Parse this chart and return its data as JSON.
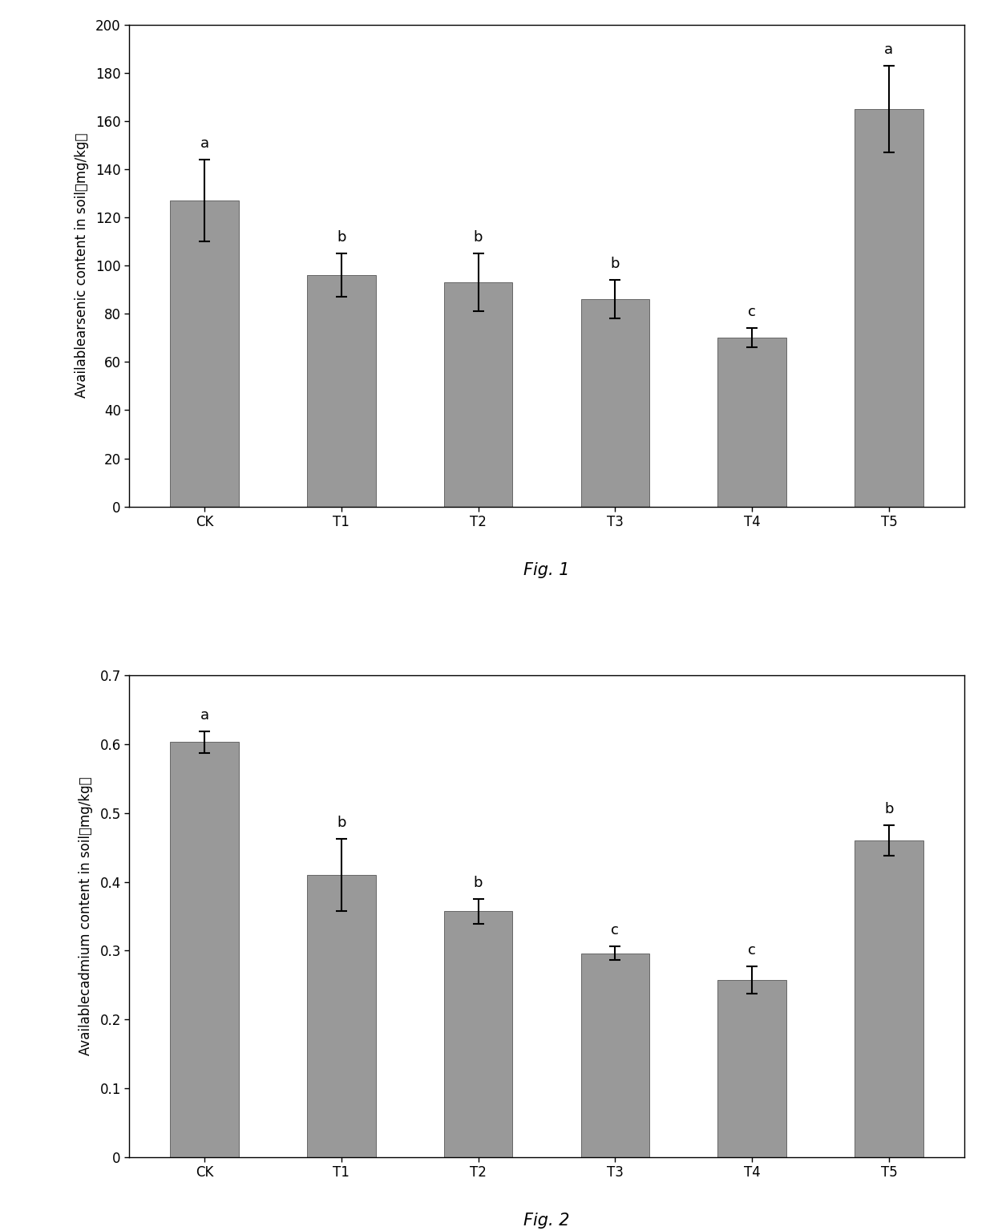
{
  "fig1": {
    "categories": [
      "CK",
      "T1",
      "T2",
      "T3",
      "T4",
      "T5"
    ],
    "values": [
      127,
      96,
      93,
      86,
      70,
      165
    ],
    "errors": [
      17,
      9,
      12,
      8,
      4,
      18
    ],
    "labels": [
      "a",
      "b",
      "b",
      "b",
      "c",
      "a"
    ],
    "ylabel": "Availablearsenic content in soil（mg/kg）",
    "ylim": [
      0,
      200
    ],
    "yticks": [
      0,
      20,
      40,
      60,
      80,
      100,
      120,
      140,
      160,
      180,
      200
    ],
    "fig_label": "Fig. 1",
    "bar_color": "#999999",
    "bar_edgecolor": "#666666"
  },
  "fig2": {
    "categories": [
      "CK",
      "T1",
      "T2",
      "T3",
      "T4",
      "T5"
    ],
    "values": [
      0.603,
      0.41,
      0.357,
      0.296,
      0.257,
      0.46
    ],
    "errors": [
      0.016,
      0.052,
      0.018,
      0.01,
      0.02,
      0.022
    ],
    "labels": [
      "a",
      "b",
      "b",
      "c",
      "c",
      "b"
    ],
    "ylabel": "Availablecadmium content in soil（mg/kg）",
    "ylim": [
      0,
      0.7
    ],
    "yticks": [
      0,
      0.1,
      0.2,
      0.3,
      0.4,
      0.5,
      0.6,
      0.7
    ],
    "fig_label": "Fig. 2",
    "bar_color": "#999999",
    "bar_edgecolor": "#666666"
  },
  "background_color": "#ffffff",
  "font_size_ylabel": 12,
  "font_size_ticks": 12,
  "font_size_fig_label": 15,
  "font_size_stat_label": 13,
  "bar_width": 0.5
}
